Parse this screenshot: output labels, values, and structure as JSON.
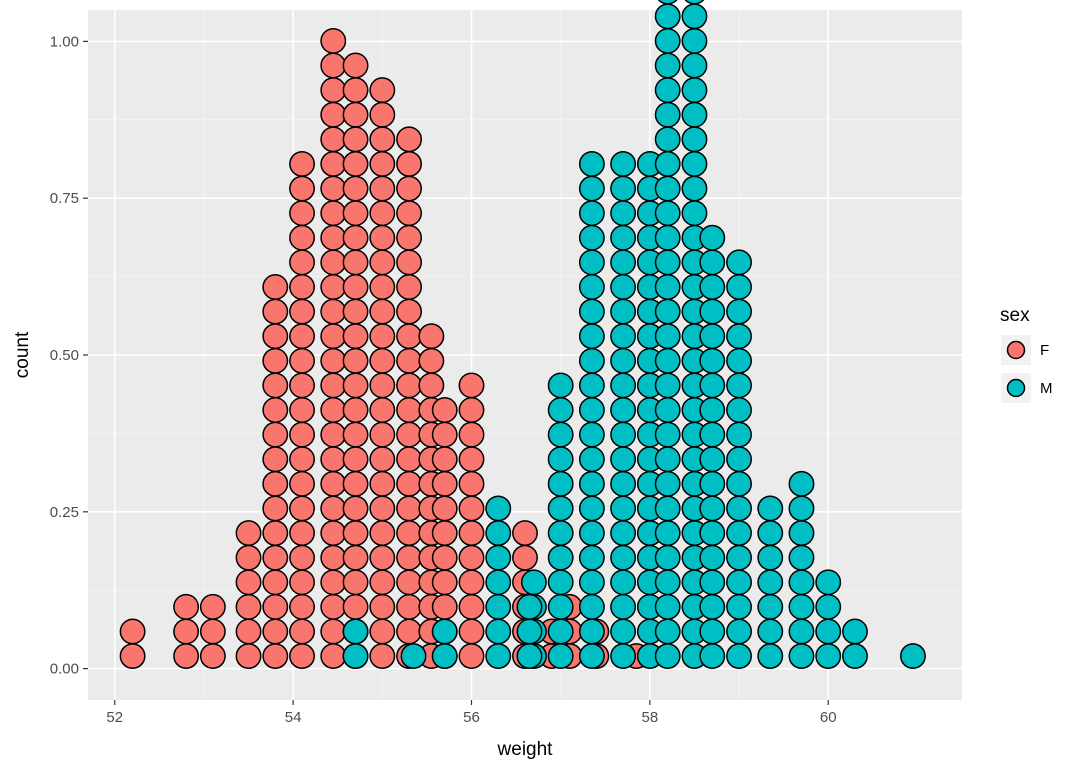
{
  "chart_data": {
    "type": "dotplot",
    "xlabel": "weight",
    "ylabel": "count",
    "xlim": [
      51.7,
      61.5
    ],
    "ylim": [
      -0.05,
      1.05
    ],
    "x_ticks": [
      52,
      54,
      56,
      58,
      60
    ],
    "y_ticks": [
      0.0,
      0.25,
      0.5,
      0.75,
      1.0
    ],
    "x_tick_labels": [
      "52",
      "54",
      "56",
      "58",
      "60"
    ],
    "y_tick_labels": [
      "0.00",
      "0.25",
      "0.50",
      "0.75",
      "1.00"
    ],
    "grid": true,
    "legend": {
      "title": "sex",
      "position": "right",
      "entries": [
        {
          "label": "F",
          "color": "#F8766D"
        },
        {
          "label": "M",
          "color": "#00BFC4"
        }
      ]
    },
    "series": [
      {
        "name": "F",
        "color": "#F8766D",
        "stacks": [
          {
            "x": 52.2,
            "count": 2
          },
          {
            "x": 52.8,
            "count": 3
          },
          {
            "x": 53.1,
            "count": 3
          },
          {
            "x": 53.5,
            "count": 6
          },
          {
            "x": 53.8,
            "count": 16
          },
          {
            "x": 54.1,
            "count": 21
          },
          {
            "x": 54.45,
            "count": 26
          },
          {
            "x": 54.7,
            "count": 25
          },
          {
            "x": 55.0,
            "count": 24
          },
          {
            "x": 55.3,
            "count": 22
          },
          {
            "x": 55.55,
            "count": 14
          },
          {
            "x": 55.7,
            "count": 11
          },
          {
            "x": 56.0,
            "count": 12
          },
          {
            "x": 56.6,
            "count": 6
          },
          {
            "x": 56.9,
            "count": 2
          },
          {
            "x": 57.1,
            "count": 3
          },
          {
            "x": 57.4,
            "count": 2
          },
          {
            "x": 57.85,
            "count": 1
          }
        ]
      },
      {
        "name": "M",
        "color": "#00BFC4",
        "stacks": [
          {
            "x": 54.7,
            "count": 2
          },
          {
            "x": 55.35,
            "count": 1
          },
          {
            "x": 55.7,
            "count": 2
          },
          {
            "x": 56.3,
            "count": 7
          },
          {
            "x": 56.7,
            "count": 4
          },
          {
            "x": 56.65,
            "count": 3
          },
          {
            "x": 57.0,
            "count": 12
          },
          {
            "x": 57.35,
            "count": 21
          },
          {
            "x": 57.7,
            "count": 21
          },
          {
            "x": 58.0,
            "count": 21
          },
          {
            "x": 58.2,
            "count": 28
          },
          {
            "x": 58.5,
            "count": 28
          },
          {
            "x": 58.7,
            "count": 18
          },
          {
            "x": 59.0,
            "count": 17
          },
          {
            "x": 59.35,
            "count": 7
          },
          {
            "x": 59.7,
            "count": 8
          },
          {
            "x": 60.0,
            "count": 4
          },
          {
            "x": 60.3,
            "count": 2
          },
          {
            "x": 60.95,
            "count": 1
          }
        ]
      }
    ]
  }
}
